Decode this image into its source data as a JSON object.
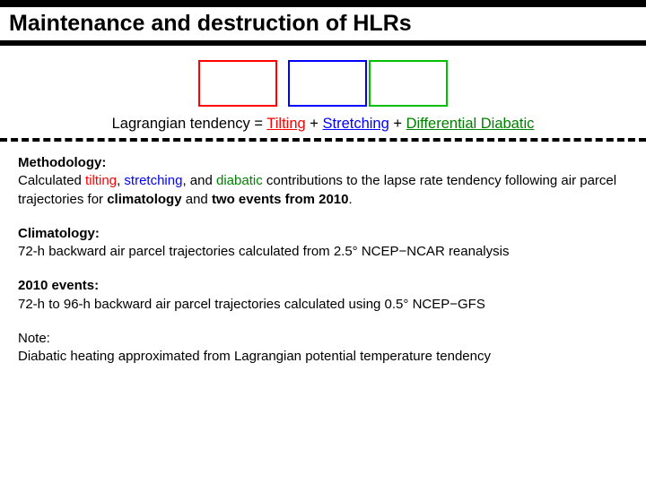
{
  "title": "Maintenance and destruction of HLRs",
  "boxes": {
    "colors": [
      "#ff0000",
      "#0000ff",
      "#00c000"
    ]
  },
  "equation": {
    "lhs": "Lagrangian tendency",
    "eq": " = ",
    "tilt": "Tilting",
    "plus1": " + ",
    "stretch": "Stretching",
    "plus2": " + ",
    "diab": "Differential Diabatic"
  },
  "methodology": {
    "head": "Methodology:",
    "pre": "Calculated ",
    "tilt": "tilting",
    "sep1": ", ",
    "stretch": "stretching",
    "sep2": ", and ",
    "diab": "diabatic",
    "mid": " contributions to the lapse rate tendency following air parcel trajectories for ",
    "clim": "climatology",
    "and": " and ",
    "events": "two events from 2010",
    "end": "."
  },
  "climatology": {
    "head": "Climatology:",
    "body": "72-h backward air parcel trajectories calculated from 2.5° NCEP−NCAR reanalysis"
  },
  "events2010": {
    "head": "2010 events:",
    "body": "72-h to 96-h backward air parcel trajectories calculated using 0.5° NCEP−GFS"
  },
  "note": {
    "head": "Note:",
    "body": "Diabatic heating approximated from Lagrangian potential temperature tendency"
  }
}
